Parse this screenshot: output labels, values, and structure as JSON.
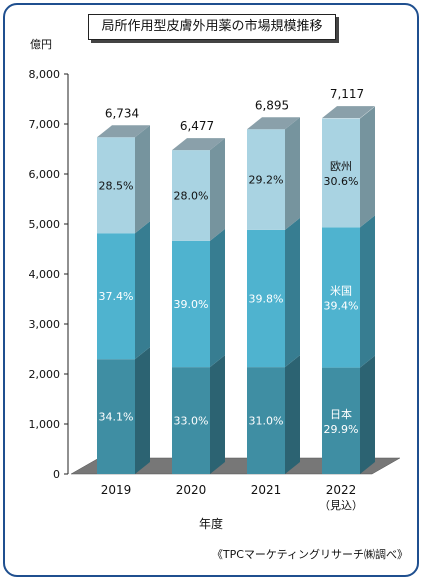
{
  "chart_data": {
    "type": "bar",
    "stacked": true,
    "title": "局所作用型皮膚外用薬の市場規模推移",
    "ylabel": "億円",
    "xlabel": "年度",
    "ylim": [
      0,
      8000
    ],
    "yticks": [
      "0",
      "1,000",
      "2,000",
      "3,000",
      "4,000",
      "5,000",
      "6,000",
      "7,000",
      "8,000"
    ],
    "categories": [
      "2019",
      "2020",
      "2021",
      "2022"
    ],
    "category_sublabels": [
      "",
      "",
      "",
      "（見込）"
    ],
    "totals": [
      6734,
      6477,
      6895,
      7117
    ],
    "total_labels": [
      "6,734",
      "6,477",
      "6,895",
      "7,117"
    ],
    "series": [
      {
        "name": "日本",
        "shares": [
          34.1,
          33.0,
          31.0,
          29.9
        ],
        "labels": [
          "34.1%",
          "33.0%",
          "31.0%",
          "29.9%"
        ],
        "color": "#3f8ea3"
      },
      {
        "name": "米国",
        "shares": [
          37.4,
          39.0,
          39.8,
          39.4
        ],
        "labels": [
          "37.4%",
          "39.0%",
          "39.8%",
          "39.4%"
        ],
        "color": "#4fb3cf"
      },
      {
        "name": "欧州",
        "shares": [
          28.5,
          28.0,
          29.2,
          30.6
        ],
        "labels": [
          "28.5%",
          "28.0%",
          "29.2%",
          "30.6%"
        ],
        "color": "#a9d3e2"
      }
    ],
    "grid": false
  },
  "source": "《TPCマーケティングリサーチ㈱調べ》"
}
